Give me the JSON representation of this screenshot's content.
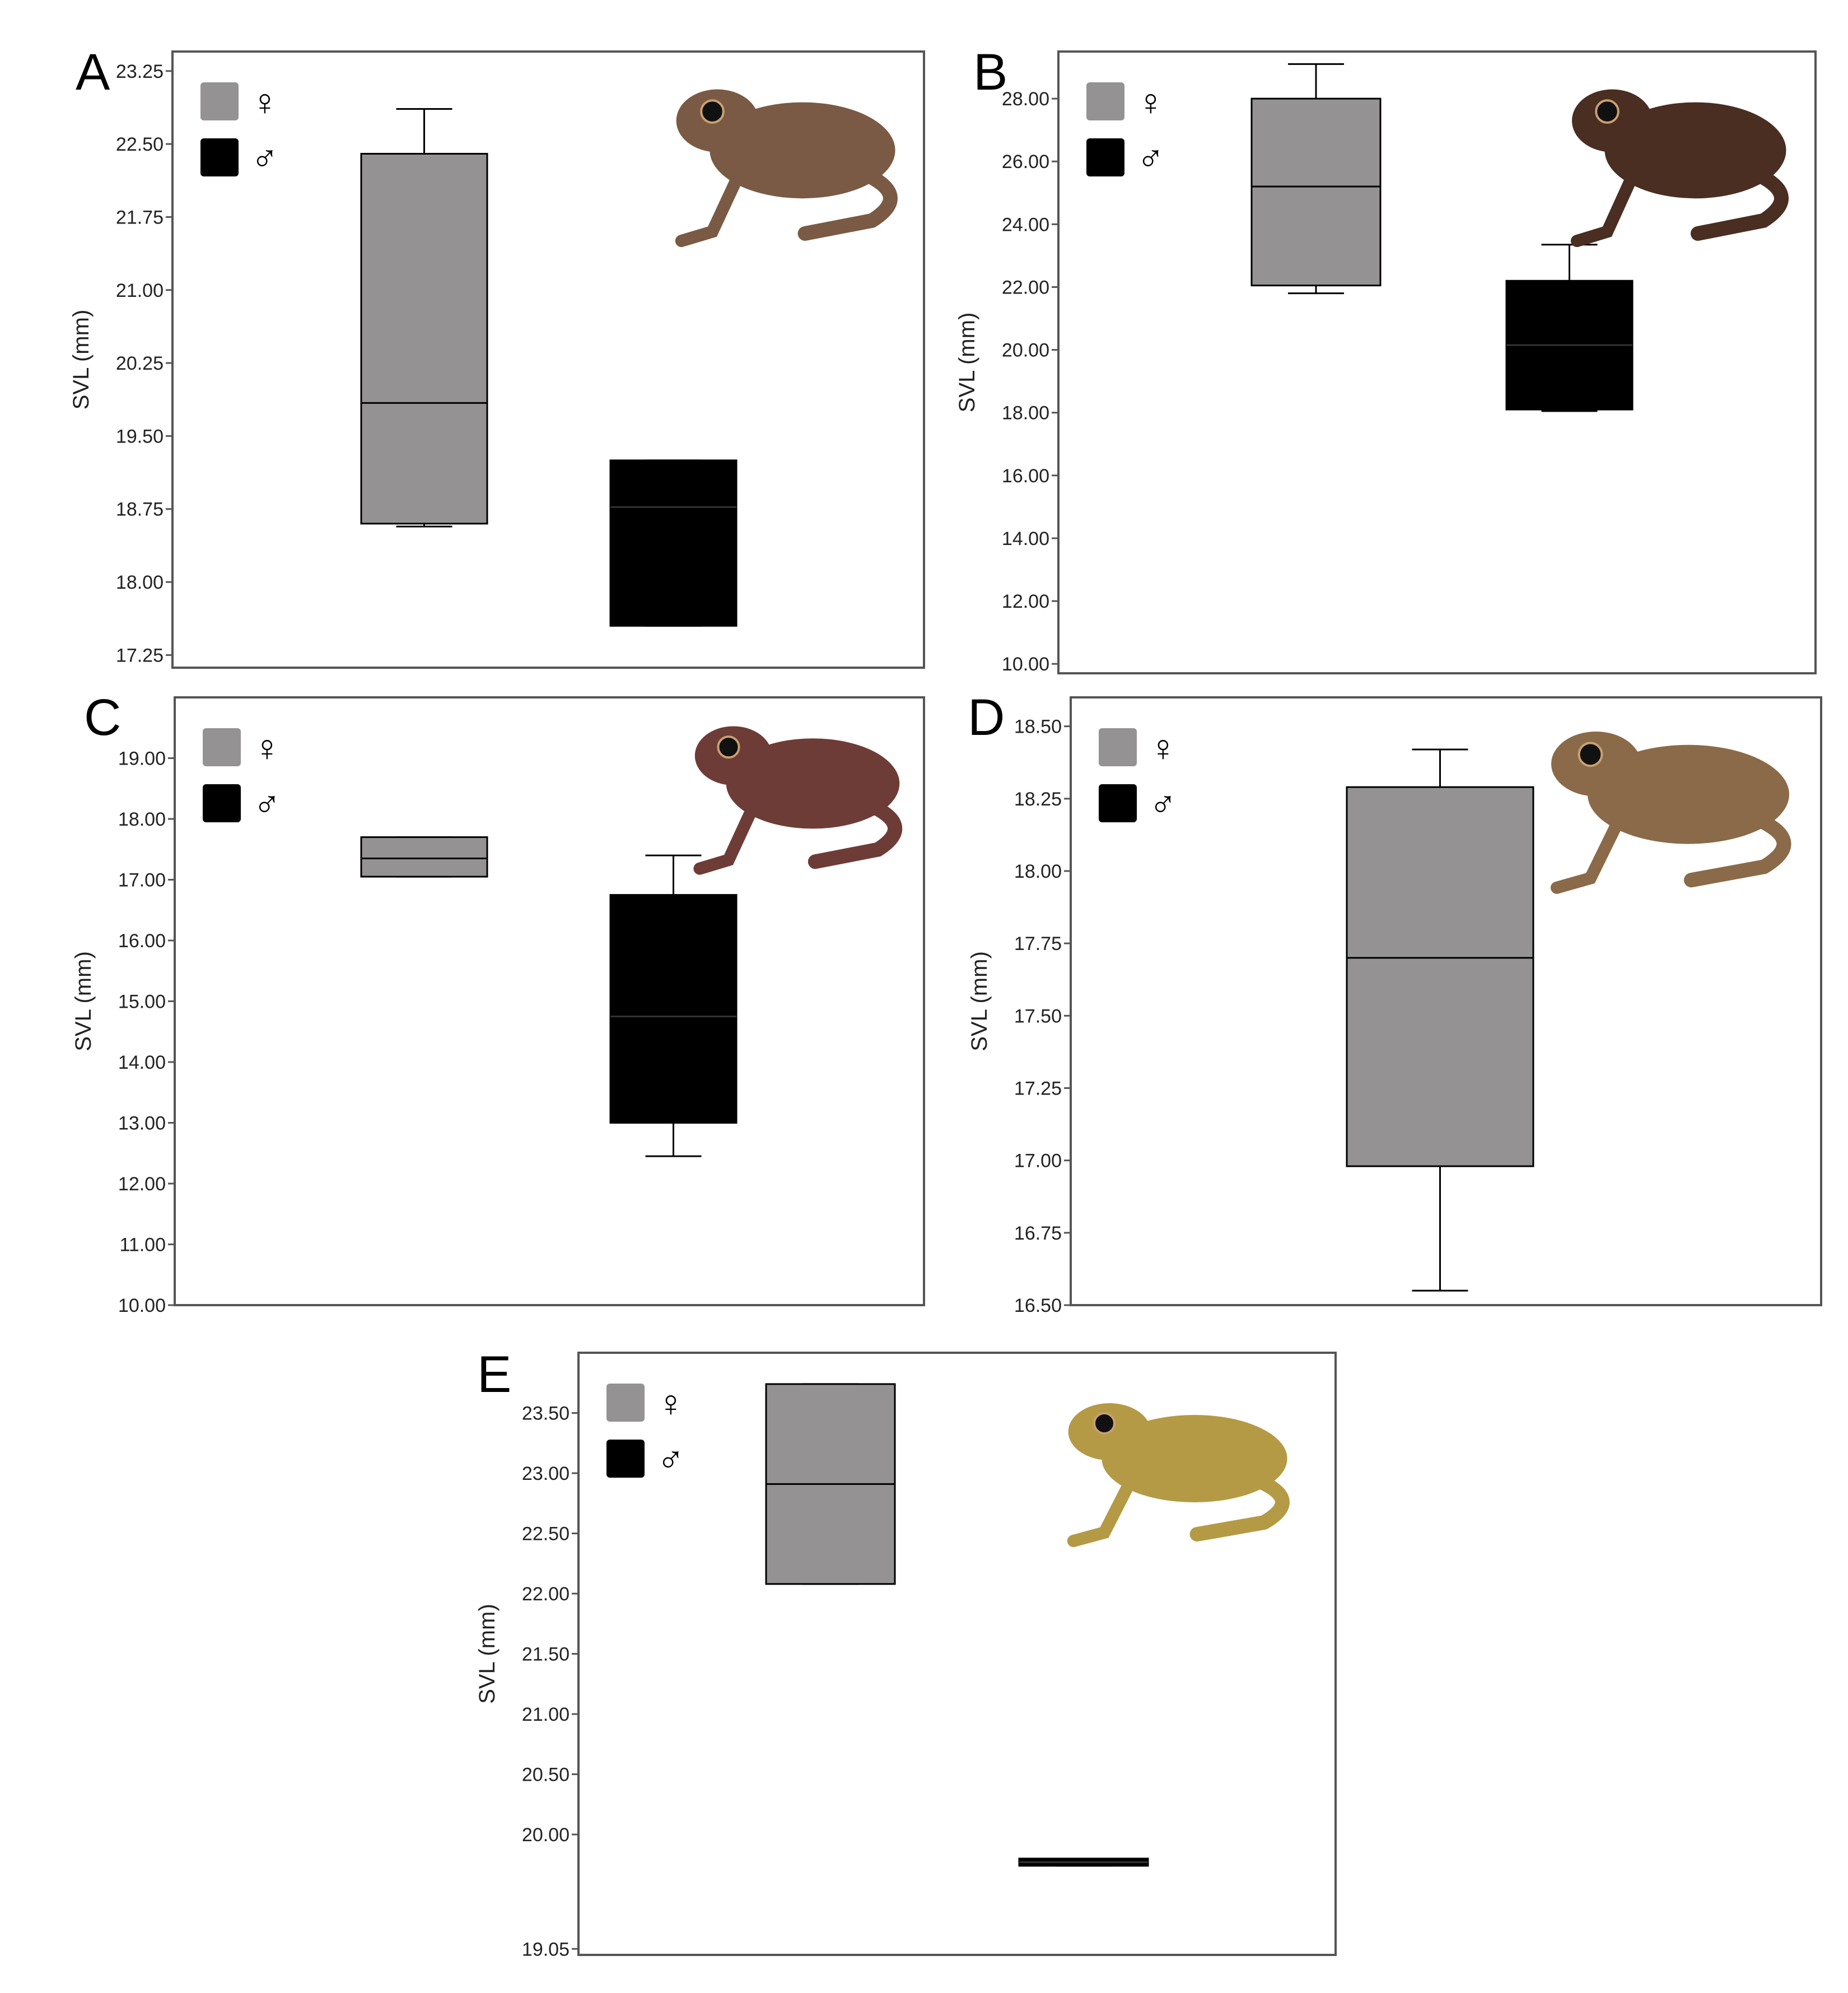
{
  "figure": {
    "legend_female_symbol": "♀",
    "legend_male_symbol": "♂",
    "female_color": "#949293",
    "male_color": "#000000",
    "frog_colors": [
      "#7a5a44",
      "#4a2e22",
      "#6e3c36",
      "#8a6a48",
      "#b59a45"
    ]
  },
  "chart_data": [
    {
      "panel": "A",
      "type": "boxplot",
      "ylabel": "SVL (mm)",
      "yticks": [
        "23.25",
        "22.50",
        "21.75",
        "21.00",
        "20.25",
        "19.50",
        "18.75",
        "18.00",
        "17.25"
      ],
      "ylim": [
        17.12,
        23.45
      ],
      "legend": [
        {
          "symbol": "♀",
          "color": "#949293"
        },
        {
          "symbol": "♂",
          "color": "#000000"
        }
      ],
      "series": [
        {
          "name": "♀",
          "color": "#949293",
          "whisker_low": 18.57,
          "q1": 18.6,
          "median": 19.84,
          "q3": 22.4,
          "whisker_high": 22.86
        },
        {
          "name": "♂",
          "color": "#000000",
          "whisker_low": 17.55,
          "q1": 17.55,
          "median": 18.77,
          "q3": 19.25,
          "whisker_high": 19.25
        }
      ]
    },
    {
      "panel": "B",
      "type": "boxplot",
      "ylabel": "SVL (mm)",
      "yticks": [
        "28.00",
        "26.00",
        "24.00",
        "22.00",
        "20.00",
        "18.00",
        "16.00",
        "14.00",
        "12.00",
        "10.00"
      ],
      "ylim": [
        9.7,
        29.5
      ],
      "legend": [
        {
          "symbol": "♀",
          "color": "#949293"
        },
        {
          "symbol": "♂",
          "color": "#000000"
        }
      ],
      "series": [
        {
          "name": "♀",
          "color": "#949293",
          "whisker_low": 21.8,
          "q1": 22.05,
          "median": 25.2,
          "q3": 28.0,
          "whisker_high": 29.1
        },
        {
          "name": "♂",
          "color": "#000000",
          "whisker_low": 18.05,
          "q1": 18.1,
          "median": 20.15,
          "q3": 22.2,
          "whisker_high": 23.35
        }
      ]
    },
    {
      "panel": "C",
      "type": "boxplot",
      "ylabel": "SVL (mm)",
      "yticks": [
        "19.00",
        "18.00",
        "17.00",
        "16.00",
        "15.00",
        "14.00",
        "13.00",
        "12.00",
        "11.00",
        "10.00"
      ],
      "ylim": [
        10.0,
        20.0
      ],
      "legend": [
        {
          "symbol": "♀",
          "color": "#949293"
        },
        {
          "symbol": "♂",
          "color": "#000000"
        }
      ],
      "series": [
        {
          "name": "♀",
          "color": "#949293",
          "whisker_low": 17.05,
          "q1": 17.05,
          "median": 17.35,
          "q3": 17.7,
          "whisker_high": 17.7
        },
        {
          "name": "♂",
          "color": "#000000",
          "whisker_low": 12.45,
          "q1": 13.0,
          "median": 14.75,
          "q3": 16.75,
          "whisker_high": 17.4
        }
      ]
    },
    {
      "panel": "D",
      "type": "boxplot",
      "ylabel": "SVL (mm)",
      "yticks": [
        "18.50",
        "18.25",
        "18.00",
        "17.75",
        "17.50",
        "17.25",
        "17.00",
        "16.75",
        "16.50"
      ],
      "ylim": [
        16.5,
        18.6
      ],
      "legend": [
        {
          "symbol": "♀",
          "color": "#949293"
        },
        {
          "symbol": "♂",
          "color": "#000000"
        }
      ],
      "series": [
        {
          "name": "♀",
          "color": "#949293",
          "whisker_low": 16.55,
          "q1": 16.98,
          "median": 17.7,
          "q3": 18.29,
          "whisker_high": 18.42
        }
      ]
    },
    {
      "panel": "E",
      "type": "boxplot",
      "ylabel": "SVL (mm)",
      "yticks": [
        "23.50",
        "23.00",
        "22.50",
        "22.00",
        "21.50",
        "21.00",
        "20.50",
        "20.00",
        "19.05"
      ],
      "ylim": [
        19.0,
        24.0
      ],
      "legend": [
        {
          "symbol": "♀",
          "color": "#949293"
        },
        {
          "symbol": "♂",
          "color": "#000000"
        }
      ],
      "series": [
        {
          "name": "♀",
          "color": "#949293",
          "whisker_low": 22.08,
          "q1": 22.08,
          "median": 22.91,
          "q3": 23.74,
          "whisker_high": 23.74
        },
        {
          "name": "♂",
          "color": "#000000",
          "whisker_low": 19.74,
          "q1": 19.74,
          "median": 19.77,
          "q3": 19.8,
          "whisker_high": 19.8
        }
      ]
    }
  ]
}
